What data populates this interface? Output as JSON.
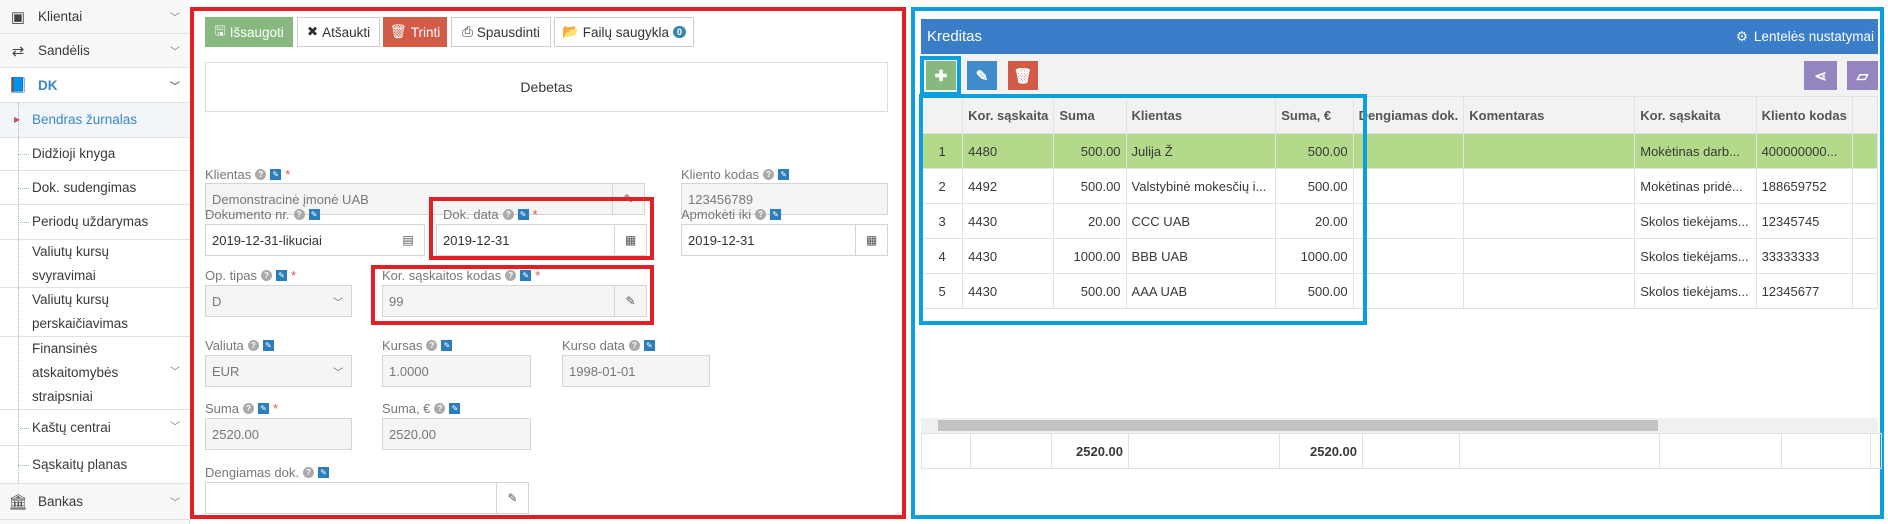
{
  "sidebar": {
    "items": [
      {
        "label": "Klientai",
        "icon": "contact-card-icon"
      },
      {
        "label": "Sandėlis",
        "icon": "exchange-arrows-icon"
      },
      {
        "label": "DK",
        "icon": "book-icon"
      },
      {
        "label": "Bendras žurnalas"
      },
      {
        "label": "Didžioji knyga"
      },
      {
        "label": "Dok. sudengimas"
      },
      {
        "label": "Periodų uždarymas"
      },
      {
        "label": "Valiutų kursų svyravimai"
      },
      {
        "label": "Valiutų kursų perskaičiavimas"
      },
      {
        "label": "Finansinės atskaitomybės straipsniai"
      },
      {
        "label": "Kaštų centrai"
      },
      {
        "label": "Sąskaitų planas"
      },
      {
        "label": "Bankas",
        "icon": "bank-icon"
      }
    ]
  },
  "toolbar": {
    "save": "Išsaugoti",
    "cancel": "Atšaukti",
    "delete": "Trinti",
    "print": "Spausdinti",
    "files": "Failų saugykla",
    "files_count": "0"
  },
  "form": {
    "section": "Debetas",
    "client": {
      "label": "Klientas",
      "value": "Demonstracinė įmonė UAB"
    },
    "client_code": {
      "label": "Kliento kodas",
      "value": "123456789"
    },
    "doc_no": {
      "label": "Dokumento nr.",
      "value": "2019-12-31-likuciai"
    },
    "doc_date": {
      "label": "Dok. data",
      "value": "2019-12-31"
    },
    "pay_until": {
      "label": "Apmokėti iki",
      "value": "2019-12-31"
    },
    "op_type": {
      "label": "Op. tipas",
      "value": "D"
    },
    "kor_code": {
      "label": "Kor. sąskaitos kodas",
      "value": "99"
    },
    "currency": {
      "label": "Valiuta",
      "value": "EUR"
    },
    "rate": {
      "label": "Kursas",
      "value": "1.0000"
    },
    "rate_date": {
      "label": "Kurso data",
      "value": "1998-01-01"
    },
    "sum": {
      "label": "Suma",
      "value": "2520.00"
    },
    "sum_eur": {
      "label": "Suma, €",
      "value": "2520.00"
    },
    "covered_doc": {
      "label": "Dengiamas dok.",
      "value": ""
    },
    "required_mark": "*"
  },
  "credit": {
    "title": "Kreditas",
    "settings": "Lentelės nustatymai",
    "columns": [
      "",
      "Kor. sąskaita",
      "Suma",
      "Klientas",
      "Suma, €",
      "Dengiamas dok.",
      "Komentaras",
      "Kor. sąskaita",
      "Kliento kodas",
      ""
    ],
    "rows": [
      [
        "1",
        "4480",
        "500.00",
        "Julija Ž",
        "500.00",
        "",
        "",
        "Mokėtinas darb...",
        "400000000...",
        ""
      ],
      [
        "2",
        "4492",
        "500.00",
        "Valstybinė mokesčių i...",
        "500.00",
        "",
        "",
        "Mokėtinas pridė...",
        "188659752",
        ""
      ],
      [
        "3",
        "4430",
        "20.00",
        "CCC UAB",
        "20.00",
        "",
        "",
        "Skolos tiekėjams...",
        "12345745",
        ""
      ],
      [
        "4",
        "4430",
        "1000.00",
        "BBB UAB",
        "1000.00",
        "",
        "",
        "Skolos tiekėjams...",
        "33333333",
        ""
      ],
      [
        "5",
        "4430",
        "500.00",
        "AAA UAB",
        "500.00",
        "",
        "",
        "Skolos tiekėjams...",
        "12345677",
        ""
      ]
    ],
    "selected_row": 0,
    "totals": {
      "sum": "2520.00",
      "sum_eur": "2520.00"
    },
    "scroll_fraction": 0.78
  },
  "colors": {
    "header": "#3a7dc9",
    "success": "#87b87f",
    "danger": "#d15b47",
    "purple": "#9585bf",
    "selected_row": "#b3d98a",
    "highlight_red": "#e31e24",
    "highlight_blue": "#0aa0e0"
  }
}
